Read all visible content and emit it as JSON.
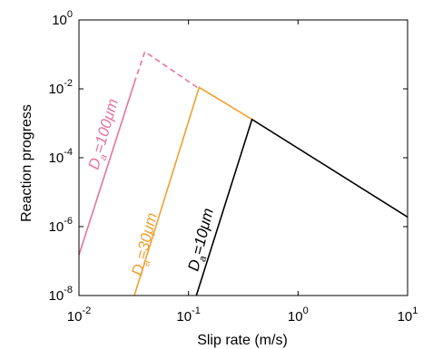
{
  "chart_data": {
    "type": "line",
    "xlabel": "Slip rate (m/s)",
    "ylabel": "Reaction progress",
    "xscale": "log",
    "yscale": "log",
    "xlim": [
      0.01,
      10
    ],
    "ylim": [
      1e-08,
      1
    ],
    "x_ticks": [
      {
        "value": 0.01,
        "base": "10",
        "exp": "-2"
      },
      {
        "value": 0.1,
        "base": "10",
        "exp": "-1"
      },
      {
        "value": 1,
        "base": "10",
        "exp": "0"
      },
      {
        "value": 10,
        "base": "10",
        "exp": "1"
      }
    ],
    "y_ticks": [
      {
        "value": 1e-08,
        "base": "10",
        "exp": "-8"
      },
      {
        "value": 1e-06,
        "base": "10",
        "exp": "-6"
      },
      {
        "value": 0.0001,
        "base": "10",
        "exp": "-4"
      },
      {
        "value": 0.01,
        "base": "10",
        "exp": "-2"
      },
      {
        "value": 1,
        "base": "10",
        "exp": "0"
      }
    ],
    "grid": false,
    "series": [
      {
        "color": "#e6739f",
        "label_parts": [
          "D",
          "a",
          "=100μm"
        ],
        "segments": [
          {
            "style": "solid",
            "points": [
              [
                0.01,
                1.5e-07
              ],
              [
                0.032,
                0.015
              ]
            ]
          },
          {
            "style": "dashed",
            "points": [
              [
                0.032,
                0.015
              ],
              [
                0.04,
                0.12
              ],
              [
                0.12,
                0.011
              ]
            ]
          }
        ]
      },
      {
        "color": "#f0a030",
        "label_parts": [
          "D",
          "a",
          "=30μm"
        ],
        "segments": [
          {
            "style": "solid",
            "points": [
              [
                0.032,
                1e-08
              ],
              [
                0.125,
                0.011
              ],
              [
                0.38,
                0.0013
              ]
            ]
          }
        ]
      },
      {
        "color": "#000000",
        "label_parts": [
          "D",
          "a",
          "=10μm"
        ],
        "segments": [
          {
            "style": "solid",
            "points": [
              [
                0.118,
                1e-08
              ],
              [
                0.38,
                0.0013
              ],
              [
                10,
                1.9e-06
              ]
            ]
          }
        ]
      }
    ]
  }
}
